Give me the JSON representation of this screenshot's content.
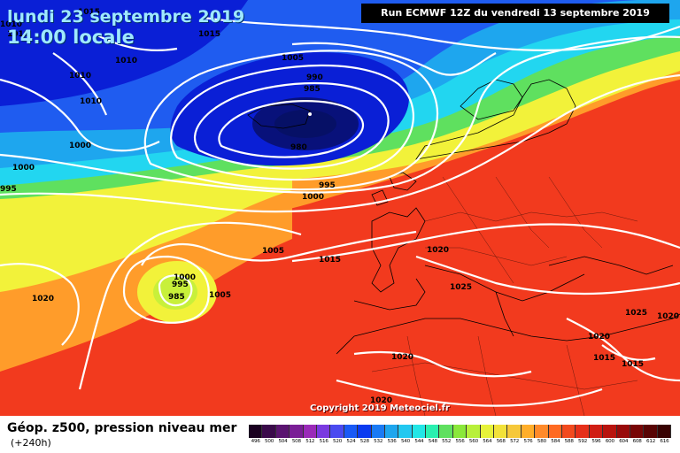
{
  "header": {
    "date_line": "lundi 23 septembre 2019",
    "time_line": "14:00 locale",
    "run_info": "Run ECMWF 12Z du vendredi 13 septembre 2019"
  },
  "copyright": "Copyright 2019 Meteociel.fr",
  "footer": {
    "title": "Géop. z500, pression niveau mer",
    "range": "(+240h)"
  },
  "colors": {
    "ocean_deep": "#0a1fd6",
    "low_core": "#08117a",
    "blue": "#1f5cf0",
    "light_blue": "#1ea6ee",
    "cyan": "#22d6f0",
    "green": "#5fe05f",
    "yellow": "#f2f23a",
    "orange": "#ff9c2a",
    "red": "#f23a1e",
    "isobar": "#ffffff",
    "coast": "#000000"
  },
  "scale": {
    "labels": [
      "496",
      "500",
      "504",
      "508",
      "512",
      "516",
      "520",
      "524",
      "528",
      "532",
      "536",
      "540",
      "544",
      "548",
      "552",
      "556",
      "560",
      "564",
      "568",
      "572",
      "576",
      "580",
      "584",
      "588",
      "592",
      "596",
      "600",
      "604",
      "608",
      "612",
      "616"
    ],
    "colors": [
      "#1a0020",
      "#3a0a4a",
      "#5a1470",
      "#7a1e96",
      "#9a2ab8",
      "#7a3ae0",
      "#4a4af0",
      "#1a5af6",
      "#0a3af0",
      "#1a7af4",
      "#1ea6ee",
      "#22c8f0",
      "#22e6e6",
      "#2af0b0",
      "#5fe05f",
      "#8ae83a",
      "#b8f03a",
      "#e6f23a",
      "#f2e23a",
      "#f6c83a",
      "#ffae2a",
      "#ff8a2a",
      "#ff6a22",
      "#f24a1e",
      "#e6301a",
      "#d01e14",
      "#b8140e",
      "#980a0a",
      "#780606",
      "#580404",
      "#380202"
    ]
  },
  "isobar_labels": [
    "1015",
    "1010",
    "1015",
    "1010",
    "1010",
    "1005",
    "990",
    "985",
    "980",
    "1000",
    "995",
    "1000",
    "995",
    "1000",
    "1010",
    "1005",
    "1015",
    "1020",
    "1025",
    "1000",
    "995",
    "985",
    "1005",
    "1020",
    "1020",
    "1025",
    "1020",
    "1015",
    "1015",
    "1020",
    "1020",
    "1010"
  ]
}
